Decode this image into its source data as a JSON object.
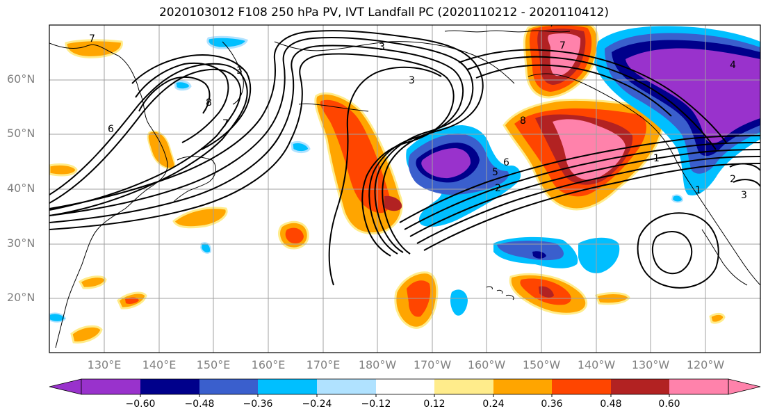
{
  "title": "2020103012 F108 250 hPa PV, IVT Landfall PC (2020110212 - 2020110412)",
  "map": {
    "lat_labels": [
      "60°N",
      "50°N",
      "40°N",
      "30°N",
      "20°N"
    ],
    "lon_labels": [
      "130°E",
      "140°E",
      "150°E",
      "160°E",
      "170°E",
      "180°W",
      "170°W",
      "160°W",
      "150°W",
      "140°W",
      "130°W",
      "120°W"
    ],
    "contour_labels": [
      "7",
      "3",
      "8",
      "7",
      "6",
      "3",
      "7",
      "3",
      "8",
      "7",
      "5",
      "6",
      "2",
      "1",
      "4",
      "1",
      "2",
      "3"
    ]
  },
  "colorbar": {
    "tick_labels": [
      "−0.60",
      "−0.48",
      "−0.36",
      "−0.24",
      "−0.12",
      "0.12",
      "0.24",
      "0.36",
      "0.48",
      "0.60"
    ],
    "colors": [
      "#9932CC",
      "#00008B",
      "#3A5FCD",
      "#00BFFF",
      "#B0E2FF",
      "#FFFFFF",
      "#FFEC8B",
      "#FFA500",
      "#FF4500",
      "#B22222",
      "#FF82AB"
    ]
  },
  "palette": {
    "purple": "#9932CC",
    "navy": "#00008B",
    "blue": "#3A5FCD",
    "cyan": "#00BFFF",
    "lightblue": "#B0E2FF",
    "yellow": "#FFEC8B",
    "orange": "#FFA500",
    "redorange": "#FF4500",
    "darkred": "#B22222",
    "pink": "#FF82AB"
  }
}
